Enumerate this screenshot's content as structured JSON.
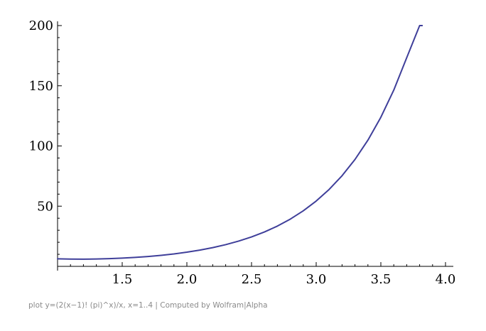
{
  "chart_data": {
    "type": "line",
    "title": "",
    "xlabel": "",
    "ylabel": "",
    "xlim": [
      1.0,
      4.0
    ],
    "ylim": [
      0,
      200
    ],
    "x_ticks": [
      1.5,
      2.0,
      2.5,
      3.0,
      3.5,
      4.0
    ],
    "x_tick_labels": [
      "1.5",
      "2.0",
      "2.5",
      "3.0",
      "3.5",
      "4.0"
    ],
    "x_minor_step": 0.1,
    "y_ticks": [
      50,
      100,
      150,
      200
    ],
    "y_tick_labels": [
      "50",
      "100",
      "150",
      "200"
    ],
    "y_minor_step": 10,
    "grid": false,
    "series": [
      {
        "color": "#3f3f9a",
        "x": [
          1.0,
          1.1,
          1.2,
          1.3,
          1.4,
          1.5,
          1.6,
          1.7,
          1.8,
          1.9,
          2.0,
          2.1,
          2.2,
          2.3,
          2.4,
          2.5,
          2.6,
          2.7,
          2.8,
          2.9,
          3.0,
          3.1,
          3.2,
          3.3,
          3.4,
          3.5,
          3.6,
          3.7,
          3.8,
          3.82
        ],
        "y": [
          6.28,
          6.05,
          6.0,
          6.12,
          6.4,
          6.83,
          7.43,
          8.2,
          9.17,
          10.35,
          11.8,
          13.51,
          15.56,
          18.02,
          20.96,
          24.44,
          28.58,
          33.46,
          39.26,
          46.13,
          54.26,
          63.88,
          75.27,
          88.79,
          104.8,
          123.84,
          146.42,
          173.28,
          205.23,
          200.0
        ]
      }
    ]
  },
  "footer": {
    "caption": "plot y=(2(x−1)! (pi)^x)/x, x=1..4 | Computed by Wolfram|Alpha"
  }
}
